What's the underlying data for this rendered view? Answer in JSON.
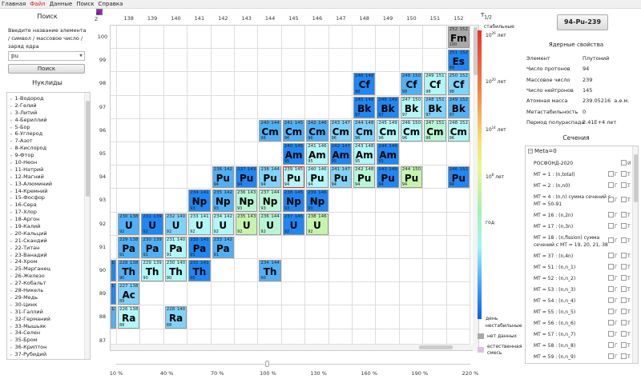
{
  "menu": [
    "Главная",
    "Файл",
    "Данные",
    "Поиск",
    "Справка"
  ],
  "menu_active": 1,
  "search": {
    "title": "Поиск",
    "description": "Введите название элемента / символ / массовое число / заряд ядра",
    "value": "pu",
    "button": "Поиск"
  },
  "nuclides_title": "Нуклиды",
  "elements": [
    "1-Водород",
    "2-Гелий",
    "3-Литий",
    "4-Бериллий",
    "5-Бор",
    "6-Углерод",
    "7-Азот",
    "8-Кислород",
    "9-Фтор",
    "10-Неон",
    "11-Натрий",
    "12-Магний",
    "13-Алюминий",
    "14-Кремний",
    "15-Фосфор",
    "16-Сера",
    "17-Хлор",
    "18-Аргон",
    "19-Калий",
    "20-Кальций",
    "21-Скандий",
    "22-Титан",
    "23-Ванадий",
    "24-Хром",
    "25-Марганец",
    "26-Железо",
    "27-Кобальт",
    "28-Никель",
    "29-Медь",
    "30-Цинк",
    "31-Галлий",
    "32-Германий",
    "33-Мышьяк",
    "34-Селен",
    "35-Бром",
    "36-Криптон",
    "37-Рубидий"
  ],
  "chart": {
    "axis_n": "N",
    "axis_z": "Z",
    "n_labels": [
      138,
      139,
      140,
      141,
      142,
      143,
      144,
      145,
      146,
      147,
      148,
      149,
      150,
      151,
      152
    ],
    "z_labels": [
      100,
      99,
      98,
      97,
      96,
      95,
      94,
      93,
      92,
      91,
      90,
      89,
      88,
      87
    ],
    "colors": {
      "deep": "#1f86f2",
      "med": "#4fb0f6",
      "lmed": "#80d2f8",
      "cyan": "#b2f6f6",
      "mint": "#b8f4d6",
      "green": "#c6f4ae",
      "gray": "#a9a9a9",
      "meta": "#a020c0",
      "selected": "#e03030"
    },
    "selected": "94-239",
    "nuclides": [
      {
        "z": 100,
        "a": 252,
        "n": 152,
        "s": "Fm",
        "c": "gray"
      },
      {
        "z": 99,
        "a": 251,
        "n": 152,
        "s": "Es",
        "c": "deep"
      },
      {
        "z": 98,
        "a": 246,
        "n": 148,
        "s": "Cf",
        "c": "deep"
      },
      {
        "z": 98,
        "a": 248,
        "n": 150,
        "s": "Cf",
        "c": "med"
      },
      {
        "z": 98,
        "a": 249,
        "n": 151,
        "s": "Cf",
        "c": "cyan"
      },
      {
        "z": 98,
        "a": 250,
        "n": 152,
        "s": "Cf",
        "c": "lmed"
      },
      {
        "z": 97,
        "a": 245,
        "n": 148,
        "s": "Bk",
        "c": "deep"
      },
      {
        "z": 97,
        "a": 246,
        "n": 149,
        "s": "Bk",
        "c": "deep"
      },
      {
        "z": 97,
        "a": 247,
        "n": 150,
        "s": "Bk",
        "c": "cyan"
      },
      {
        "z": 97,
        "a": 248,
        "n": 151,
        "s": "Bk",
        "c": "lmed"
      },
      {
        "z": 97,
        "a": 249,
        "n": 152,
        "s": "Bk",
        "c": "med"
      },
      {
        "z": 96,
        "a": 240,
        "n": 144,
        "s": "Cm",
        "c": "med"
      },
      {
        "z": 96,
        "a": 241,
        "n": 145,
        "s": "Cm",
        "c": "med"
      },
      {
        "z": 96,
        "a": 242,
        "n": 146,
        "s": "Cm",
        "c": "med"
      },
      {
        "z": 96,
        "a": 243,
        "n": 147,
        "s": "Cm",
        "c": "lmed"
      },
      {
        "z": 96,
        "a": 244,
        "n": 148,
        "s": "Cm",
        "c": "lmed"
      },
      {
        "z": 96,
        "a": 245,
        "n": 149,
        "s": "Cm",
        "c": "cyan"
      },
      {
        "z": 96,
        "a": 246,
        "n": 150,
        "s": "Cm",
        "c": "cyan"
      },
      {
        "z": 96,
        "a": 247,
        "n": 151,
        "s": "Cm",
        "c": "mint"
      },
      {
        "z": 96,
        "a": 248,
        "n": 152,
        "s": "Cm",
        "c": "cyan"
      },
      {
        "z": 95,
        "a": 240,
        "n": 145,
        "s": "Am",
        "c": "deep"
      },
      {
        "z": 95,
        "a": 241,
        "n": 146,
        "s": "Am",
        "c": "cyan"
      },
      {
        "z": 95,
        "a": 242,
        "n": 147,
        "s": "Am",
        "c": "deep",
        "meta": true
      },
      {
        "z": 95,
        "a": 243,
        "n": 148,
        "s": "Am",
        "c": "cyan"
      },
      {
        "z": 95,
        "a": 244,
        "n": 149,
        "s": "Am",
        "c": "deep"
      },
      {
        "z": 94,
        "a": 236,
        "n": 142,
        "s": "Pu",
        "c": "med"
      },
      {
        "z": 94,
        "a": 237,
        "n": 143,
        "s": "Pu",
        "c": "deep"
      },
      {
        "z": 94,
        "a": 238,
        "n": 144,
        "s": "Pu",
        "c": "lmed"
      },
      {
        "z": 94,
        "a": 239,
        "n": 145,
        "s": "Pu",
        "c": "cyan"
      },
      {
        "z": 94,
        "a": 240,
        "n": 146,
        "s": "Pu",
        "c": "cyan"
      },
      {
        "z": 94,
        "a": 241,
        "n": 147,
        "s": "Pu",
        "c": "lmed"
      },
      {
        "z": 94,
        "a": 242,
        "n": 148,
        "s": "Pu",
        "c": "mint"
      },
      {
        "z": 94,
        "a": 243,
        "n": 149,
        "s": "Pu",
        "c": "deep"
      },
      {
        "z": 94,
        "a": 244,
        "n": 150,
        "s": "Pu",
        "c": "green"
      },
      {
        "z": 94,
        "a": 246,
        "n": 152,
        "s": "Pu",
        "c": "deep"
      },
      {
        "z": 93,
        "a": 234,
        "n": 141,
        "s": "Np",
        "c": "deep"
      },
      {
        "z": 93,
        "a": 235,
        "n": 142,
        "s": "Np",
        "c": "med"
      },
      {
        "z": 93,
        "a": 236,
        "n": 143,
        "s": "Np",
        "c": "mint"
      },
      {
        "z": 93,
        "a": 237,
        "n": 144,
        "s": "Np",
        "c": "mint"
      },
      {
        "z": 93,
        "a": 238,
        "n": 145,
        "s": "Np",
        "c": "deep"
      },
      {
        "z": 93,
        "a": 239,
        "n": 146,
        "s": "Np",
        "c": "deep"
      },
      {
        "z": 92,
        "a": 230,
        "n": 138,
        "s": "U",
        "c": "med"
      },
      {
        "z": 92,
        "a": 231,
        "n": 139,
        "s": "U",
        "c": "deep"
      },
      {
        "z": 92,
        "a": 232,
        "n": 140,
        "s": "U",
        "c": "lmed"
      },
      {
        "z": 92,
        "a": 233,
        "n": 141,
        "s": "U",
        "c": "cyan"
      },
      {
        "z": 92,
        "a": 234,
        "n": 142,
        "s": "U",
        "c": "cyan"
      },
      {
        "z": 92,
        "a": 235,
        "n": 143,
        "s": "U",
        "c": "green"
      },
      {
        "z": 92,
        "a": 236,
        "n": 144,
        "s": "U",
        "c": "mint"
      },
      {
        "z": 92,
        "a": 237,
        "n": 145,
        "s": "U",
        "c": "deep"
      },
      {
        "z": 92,
        "a": 238,
        "n": 146,
        "s": "U",
        "c": "green"
      },
      {
        "z": 91,
        "a": 229,
        "n": 138,
        "s": "Pa",
        "c": "med"
      },
      {
        "z": 91,
        "a": 230,
        "n": 139,
        "s": "Pa",
        "c": "med"
      },
      {
        "z": 91,
        "a": 231,
        "n": 140,
        "s": "Pa",
        "c": "cyan"
      },
      {
        "z": 91,
        "a": 232,
        "n": 141,
        "s": "Pa",
        "c": "deep"
      },
      {
        "z": 91,
        "a": 233,
        "n": 142,
        "s": "Pa",
        "c": "med"
      },
      {
        "z": 90,
        "a": 227,
        "n": 137,
        "s": "Th",
        "c": "deep"
      },
      {
        "z": 90,
        "a": 228,
        "n": 138,
        "s": "Th",
        "c": "med"
      },
      {
        "z": 90,
        "a": 229,
        "n": 139,
        "s": "Th",
        "c": "cyan"
      },
      {
        "z": 90,
        "a": 230,
        "n": 140,
        "s": "Th",
        "c": "cyan"
      },
      {
        "z": 90,
        "a": 231,
        "n": 141,
        "s": "Th",
        "c": "deep"
      },
      {
        "z": 90,
        "a": 234,
        "n": 144,
        "s": "Th",
        "c": "med"
      },
      {
        "z": 89,
        "a": 226,
        "n": 137,
        "s": "Ac",
        "c": "deep"
      },
      {
        "z": 89,
        "a": 227,
        "n": 138,
        "s": "Ac",
        "c": "lmed"
      },
      {
        "z": 88,
        "a": 225,
        "n": 137,
        "s": "Ra",
        "c": "med"
      },
      {
        "z": 88,
        "a": 226,
        "n": 138,
        "s": "Ra",
        "c": "cyan"
      },
      {
        "z": 88,
        "a": 228,
        "n": 140,
        "s": "Ra",
        "c": "lmed"
      }
    ]
  },
  "zoom": {
    "labels": [
      "10 %",
      "40 %",
      "70 %",
      "100 %",
      "130 %",
      "160 %",
      "190 %",
      "220 %"
    ],
    "value": 100
  },
  "legend": {
    "title": "T",
    "title_sub": "1/2",
    "stable": "стабильные",
    "l1": "10",
    "l1e": "26",
    "l1u": "лет",
    "l2": "10",
    "l2e": "20",
    "l2u": "лет",
    "l3": "10",
    "l3e": "14",
    "l3u": "лет",
    "l4": "10",
    "l4e": "8",
    "l4u": "лет",
    "l5": "год",
    "l6": "день",
    "unstable": "нестабильные",
    "nodata": "нет данных",
    "natural": "естественная смесь"
  },
  "selected_button": "94-Pu-239",
  "properties": {
    "title": "Ядерные свойства",
    "rows": [
      [
        "Элемент",
        "Плутоний"
      ],
      [
        "Число протонов",
        "94"
      ],
      [
        "Массовое число",
        "239"
      ],
      [
        "Число нейтронов",
        "145"
      ],
      [
        "Атомная масса",
        "239.05216  а.е.м."
      ],
      [
        "Метастабильность",
        "0"
      ],
      [
        "Период полураспада",
        "2.41E+4 лет"
      ]
    ]
  },
  "sections": {
    "title": "Сечения",
    "root": "Meta=0",
    "lib": "РОСФОНД-2020",
    "lib_cb": "И",
    "cb1": "Г",
    "cb2": "Т",
    "items": [
      "MT = 1 : (n,total)",
      "MT = 2 : (n,n0)",
      "MT = 4 : (n,n) сумма сечений с MT = 50-91",
      "MT = 16 : (n,2n)",
      "MT = 17 : (n,3n)",
      "MT = 18 : (n,fission) сумма сечений с MT = 19, 20, 21, 38",
      "MT = 37 : (n,4n)",
      "MT = 51 : (n,n_1)",
      "MT = 52 : (n,n_2)",
      "MT = 53 : (n,n_3)",
      "MT = 54 : (n,n_4)",
      "MT = 55 : (n,n_5)",
      "MT = 56 : (n,n_6)",
      "MT = 57 : (n,n_7)",
      "MT = 58 : (n,n_8)",
      "MT = 59 : (n,n_9)"
    ]
  }
}
